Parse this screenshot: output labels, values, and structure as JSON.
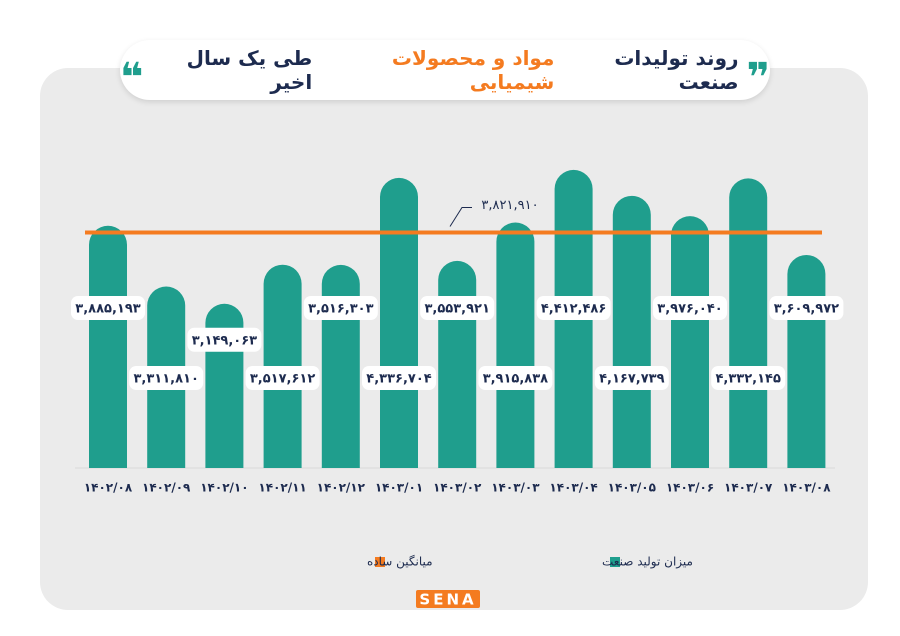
{
  "chart_data": {
    "type": "bar",
    "title_parts": [
      {
        "text": "روند تولیدات صنعت",
        "color": "#1d2b4f"
      },
      {
        "text": "مواد و محصولات شیمیایی",
        "color": "#f47b20"
      },
      {
        "text": "طی یک سال اخیر",
        "color": "#1d2b4f"
      }
    ],
    "categories": [
      "۱۴۰۲/۰۸",
      "۱۴۰۲/۰۹",
      "۱۴۰۲/۱۰",
      "۱۴۰۲/۱۱",
      "۱۴۰۲/۱۲",
      "۱۴۰۳/۰۱",
      "۱۴۰۳/۰۲",
      "۱۴۰۳/۰۳",
      "۱۴۰۳/۰۴",
      "۱۴۰۳/۰۵",
      "۱۴۰۳/۰۶",
      "۱۴۰۳/۰۷",
      "۱۴۰۳/۰۸"
    ],
    "series": [
      {
        "name": "میزان تولید صنعت",
        "color": "#1f9e8d",
        "values": [
          3885193,
          3311810,
          3149063,
          3517612,
          3516303,
          4336704,
          3553921,
          3915838,
          4412486,
          4167739,
          3976040,
          4332145,
          3609972
        ],
        "value_labels": [
          "۳,۸۸۵,۱۹۳",
          "۳,۳۱۱,۸۱۰",
          "۳,۱۴۹,۰۶۳",
          "۳,۵۱۷,۶۱۲",
          "۳,۵۱۶,۳۰۳",
          "۴,۳۳۶,۷۰۴",
          "۳,۵۵۳,۹۲۱",
          "۳,۹۱۵,۸۳۸",
          "۴,۴۱۲,۴۸۶",
          "۴,۱۶۷,۷۳۹",
          "۳,۹۷۶,۰۴۰",
          "۴,۳۳۲,۱۴۵",
          "۳,۶۰۹,۹۷۲"
        ]
      }
    ],
    "average": {
      "name": "میانگین ساده",
      "value": 3821910,
      "value_label": "۳,۸۲۱,۹۱۰",
      "color": "#f47b20"
    },
    "ylim": [
      1600000,
      4600000
    ],
    "logo": "SENA"
  }
}
